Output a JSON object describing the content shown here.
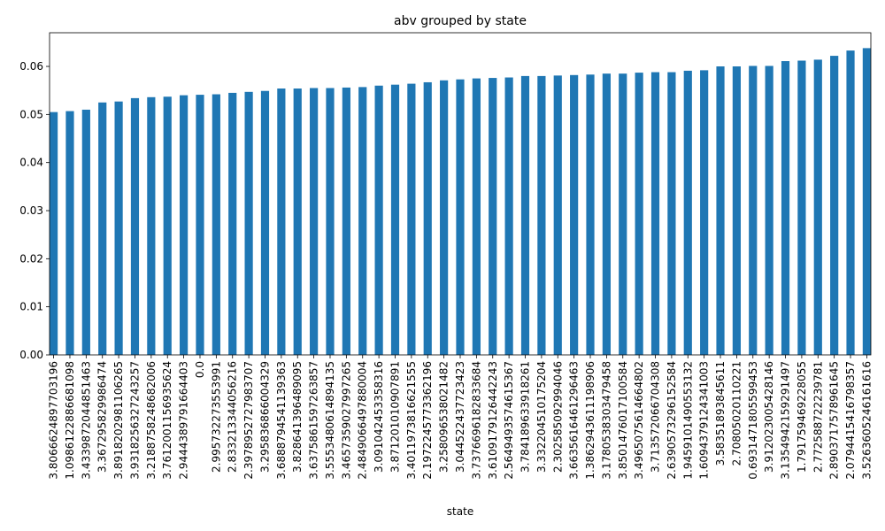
{
  "chart_data": {
    "type": "bar",
    "title": "abv grouped by state",
    "xlabel": "state",
    "ylabel": "",
    "ylim": [
      0,
      0.067
    ],
    "yticks": [
      0.0,
      0.01,
      0.02,
      0.03,
      0.04,
      0.05,
      0.06
    ],
    "ytick_labels": [
      "0.00",
      "0.01",
      "0.02",
      "0.03",
      "0.04",
      "0.05",
      "0.06"
    ],
    "grid": false,
    "bar_color": "#1f77b4",
    "categories": [
      "3.8066624897703196",
      "1.0986122886681098",
      "3.4339872044851463",
      "3.367295829986474",
      "3.8918202981106265",
      "3.9318256327243257",
      "3.2188758248682006",
      "3.7612001156935624",
      "2.9444389791664403",
      "0.0",
      "2.995732273553991",
      "2.833213344056216",
      "2.3978952727983707",
      "3.295836866004329",
      "3.6888794541139363",
      "3.828641396489095",
      "3.6375861597263857",
      "3.5553480614894135",
      "3.4657359027997265",
      "2.4849066497880004",
      "3.091042453358316",
      "3.871201010907891",
      "3.4011973816621555",
      "2.1972245773362196",
      "3.258096538021482",
      "3.044522437723423",
      "3.7376696182833684",
      "3.6109179126442243",
      "2.5649493574615367",
      "3.784189633918261",
      "3.332204510175204",
      "2.302585092994046",
      "3.6635616461296463",
      "1.3862943611198906",
      "3.1780538303479458",
      "3.8501476017100584",
      "3.4965075614664802",
      "3.713572066704308",
      "2.6390573296152584",
      "1.9459101490553132",
      "1.6094379124341003",
      "3.58351893845611",
      "2.70805020110221",
      "0.6931471805599453",
      "3.912023005428146",
      "3.1354942159291497",
      "1.791759469228055",
      "2.772588722239781",
      "2.8903717578961645",
      "2.0794415416798357",
      "3.5263605246161616"
    ],
    "values": [
      0.0505,
      0.0507,
      0.051,
      0.0525,
      0.0527,
      0.0534,
      0.0536,
      0.0537,
      0.054,
      0.0541,
      0.0542,
      0.0545,
      0.0547,
      0.0549,
      0.0554,
      0.0554,
      0.0555,
      0.0555,
      0.0556,
      0.0557,
      0.056,
      0.0562,
      0.0564,
      0.0567,
      0.0571,
      0.0573,
      0.0575,
      0.0576,
      0.0577,
      0.058,
      0.058,
      0.0581,
      0.0582,
      0.0583,
      0.0585,
      0.0585,
      0.0587,
      0.0588,
      0.0588,
      0.0591,
      0.0592,
      0.06,
      0.06,
      0.0601,
      0.0601,
      0.0611,
      0.0612,
      0.0614,
      0.0622,
      0.0633,
      0.0638
    ]
  }
}
